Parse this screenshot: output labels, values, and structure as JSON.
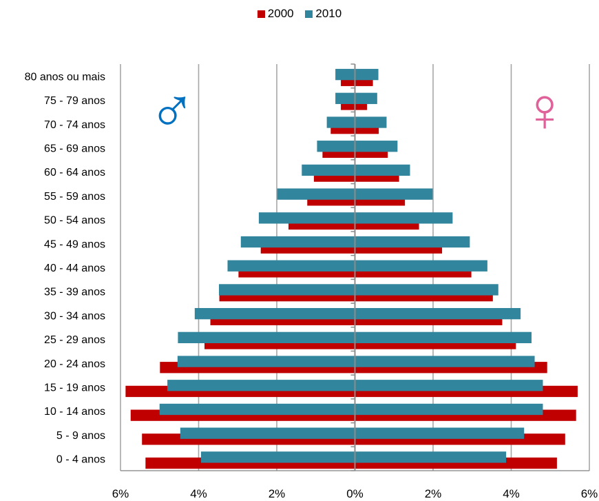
{
  "chart_data": {
    "type": "bar",
    "orientation": "horizontal",
    "layout": "population-pyramid",
    "title": "",
    "categories": [
      "0 - 4 anos",
      "5 - 9 anos",
      "10 - 14 anos",
      "15 - 19 anos",
      "20 - 24 anos",
      "25 - 29 anos",
      "30 - 34 anos",
      "35 - 39 anos",
      "40 - 44 anos",
      "45 - 49 anos",
      "50 - 54 anos",
      "55 - 59 anos",
      "60 - 64 anos",
      "65 - 69 anos",
      "70 - 74 anos",
      "75 - 79 anos",
      "80 anos ou mais"
    ],
    "series": [
      {
        "name": "2000",
        "color": "#c00000",
        "male": [
          5.36,
          5.45,
          5.74,
          5.87,
          4.99,
          3.85,
          3.7,
          3.47,
          2.98,
          2.41,
          1.7,
          1.22,
          1.05,
          0.83,
          0.62,
          0.36,
          0.36
        ],
        "female": [
          5.17,
          5.38,
          5.66,
          5.7,
          4.92,
          4.12,
          3.77,
          3.53,
          2.98,
          2.23,
          1.64,
          1.28,
          1.13,
          0.84,
          0.61,
          0.31,
          0.46
        ]
      },
      {
        "name": "2010",
        "color": "#31859c",
        "male": [
          3.94,
          4.47,
          5.0,
          4.8,
          4.54,
          4.53,
          4.1,
          3.48,
          3.26,
          2.92,
          2.46,
          1.99,
          1.36,
          0.97,
          0.72,
          0.5,
          0.5
        ],
        "female": [
          3.87,
          4.33,
          4.81,
          4.81,
          4.6,
          4.52,
          4.24,
          3.67,
          3.39,
          2.94,
          2.5,
          1.99,
          1.41,
          1.09,
          0.81,
          0.57,
          0.6
        ]
      }
    ],
    "xlim": [
      -6,
      6
    ],
    "xticks": [
      -6,
      -4,
      -2,
      0,
      2,
      4,
      6
    ],
    "xtick_labels": [
      "6%",
      "4%",
      "2%",
      "0%",
      "2%",
      "4%",
      "6%"
    ],
    "xlabel": "",
    "ylabel": "",
    "grid": true,
    "legend_position": "top-center",
    "annotations": {
      "male_symbol": "♂",
      "male_color": "#0070c0",
      "female_symbol": "♀",
      "female_color": "#e0629a"
    }
  }
}
